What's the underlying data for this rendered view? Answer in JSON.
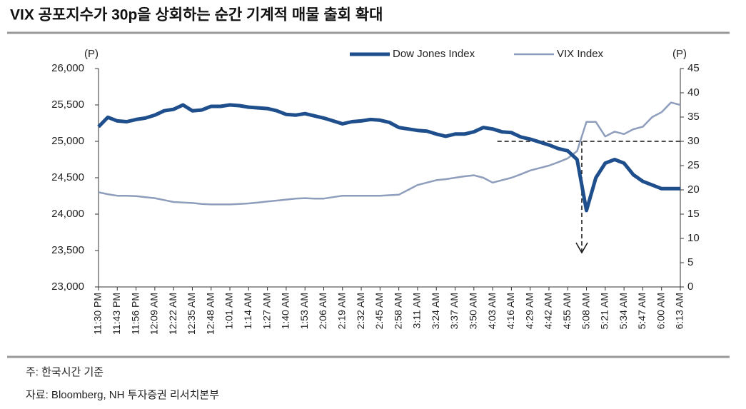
{
  "chart_data": {
    "type": "line",
    "title": "VIX 공포지수가 30p을 상회하는 순간 기계적 매물 출회 확대",
    "y_unit": "(P)",
    "y2_unit": "(P)",
    "note": "주: 한국시간 기준",
    "source": "자료: Bloomberg, NH 투자증권 리서치본부",
    "categories": [
      "11:30 PM",
      null,
      "11:43 PM",
      null,
      "11:56 PM",
      null,
      "12:09 AM",
      null,
      "12:22 AM",
      null,
      "12:35 AM",
      null,
      "12:48 AM",
      null,
      "1:01 AM",
      null,
      "1:14 AM",
      null,
      "1:27 AM",
      null,
      "1:40 AM",
      null,
      "1:53 AM",
      null,
      "2:06 AM",
      null,
      "2:19 AM",
      null,
      "2:32 AM",
      null,
      "2:45 AM",
      null,
      "2:58 AM",
      null,
      "3:11 AM",
      null,
      "3:24 AM",
      null,
      "3:37 AM",
      null,
      "3:50 AM",
      null,
      "4:03 AM",
      null,
      "4:16 AM",
      null,
      "4:29 AM",
      null,
      "4:42 AM",
      null,
      "4:55 AM",
      null,
      "5:08 AM",
      null,
      "5:21 AM",
      null,
      "5:34 AM",
      null,
      "5:47 AM",
      null,
      "6:00 AM",
      null,
      "6:13 AM"
    ],
    "series": [
      {
        "name": "Dow Jones Index",
        "color": "#1f4e8c",
        "axis": "y",
        "values": [
          25200,
          25330,
          25280,
          25270,
          25300,
          25320,
          25360,
          25420,
          25440,
          25500,
          25420,
          25430,
          25480,
          25480,
          25500,
          25490,
          25470,
          25460,
          25450,
          25420,
          25370,
          25360,
          25380,
          25350,
          25320,
          25280,
          25240,
          25270,
          25280,
          25300,
          25290,
          25260,
          25190,
          25170,
          25150,
          25140,
          25100,
          25070,
          25100,
          25100,
          25130,
          25190,
          25170,
          25130,
          25120,
          25060,
          25030,
          24990,
          24950,
          24900,
          24870,
          24750,
          24050,
          24500,
          24700,
          24750,
          24700,
          24540,
          24450,
          24400,
          24350,
          24350,
          24350
        ]
      },
      {
        "name": "VIX Index",
        "color": "#8d9dbb",
        "axis": "y2",
        "values": [
          19.5,
          19.1,
          18.8,
          18.8,
          18.7,
          18.5,
          18.3,
          17.9,
          17.5,
          17.4,
          17.3,
          17.1,
          17,
          17,
          17,
          17.1,
          17.2,
          17.4,
          17.6,
          17.8,
          18,
          18.2,
          18.3,
          18.2,
          18.2,
          18.5,
          18.8,
          18.8,
          18.8,
          18.8,
          18.8,
          18.9,
          19,
          20,
          21,
          21.5,
          22,
          22.2,
          22.5,
          22.8,
          23,
          22.5,
          21.5,
          22,
          22.5,
          23.2,
          24,
          24.5,
          25,
          25.7,
          26.5,
          28,
          34,
          34,
          31,
          32,
          31.5,
          32.5,
          33,
          35,
          36,
          38,
          37.5
        ]
      }
    ],
    "ylim": [
      23000,
      26000
    ],
    "yticks": [
      {
        "value": 23000,
        "label": "23,000"
      },
      {
        "value": 23500,
        "label": "23,500"
      },
      {
        "value": 24000,
        "label": "24,000"
      },
      {
        "value": 24500,
        "label": "24,500"
      },
      {
        "value": 25000,
        "label": "25,000"
      },
      {
        "value": 25500,
        "label": "25,500"
      },
      {
        "value": 26000,
        "label": "26,000"
      }
    ],
    "y2lim": [
      0,
      45
    ],
    "y2ticks": [
      0,
      5,
      10,
      15,
      20,
      25,
      30,
      35,
      40,
      45
    ],
    "legend": "top"
  }
}
